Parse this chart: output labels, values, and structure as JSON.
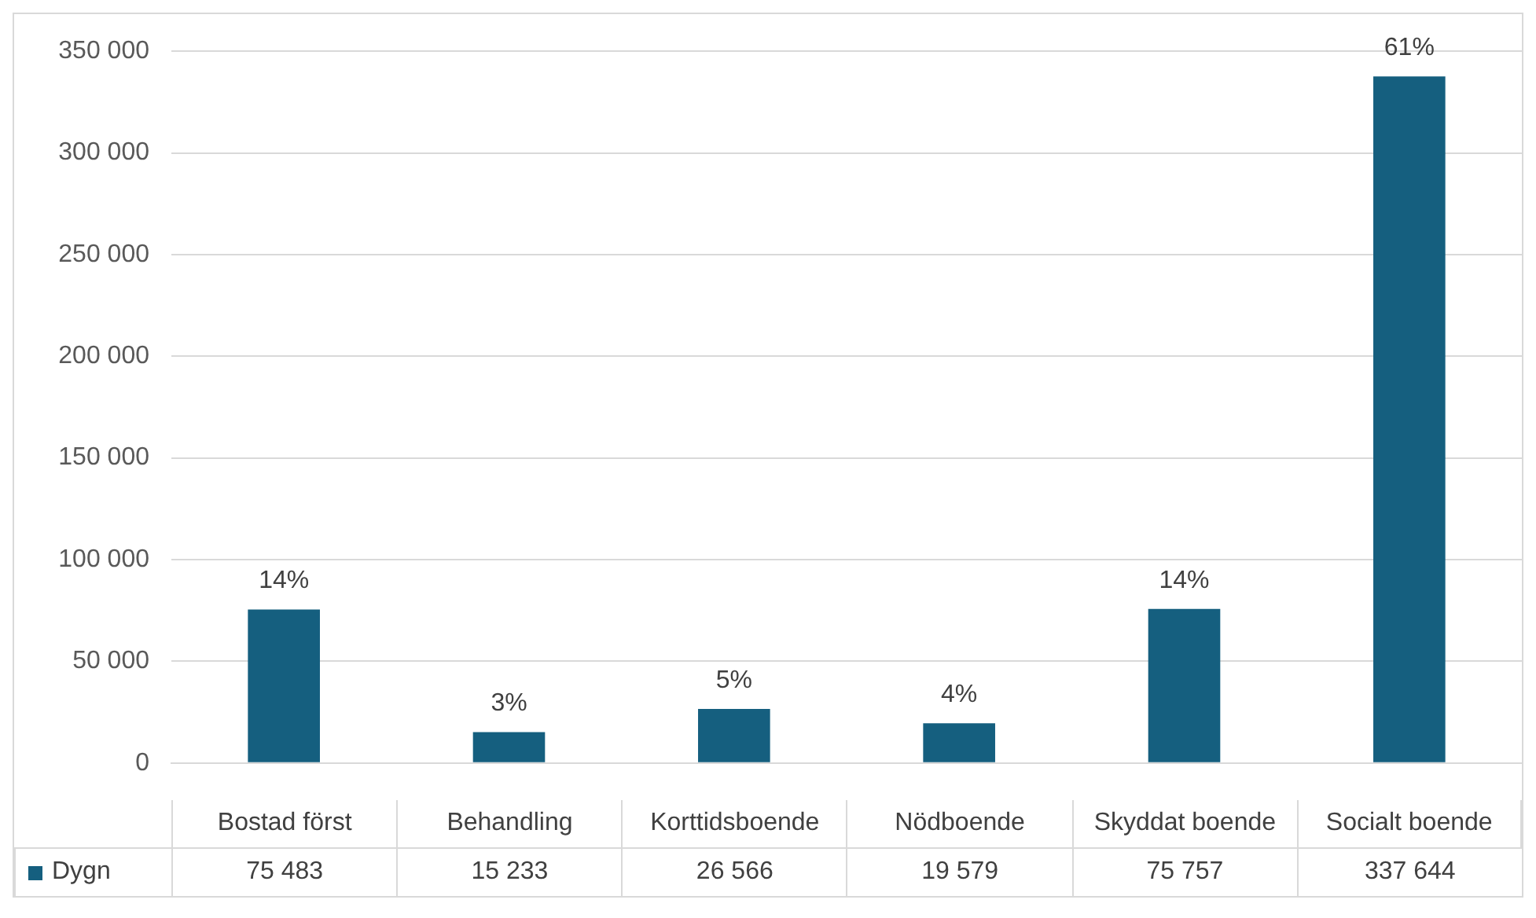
{
  "chart_data": {
    "type": "bar",
    "categories": [
      "Bostad först",
      "Behandling",
      "Korttidsboende",
      "Nödboende",
      "Skyddat boende",
      "Socialt boende"
    ],
    "series": [
      {
        "name": "Dygn",
        "color": "#155f7f",
        "values": [
          75483,
          15233,
          26566,
          19579,
          75757,
          337644
        ],
        "value_labels": [
          "75 483",
          "15 233",
          "26 566",
          "19 579",
          "75 757",
          "337 644"
        ]
      }
    ],
    "annotations": [
      {
        "text": "14%",
        "x": "Bostad först",
        "y": 75483
      },
      {
        "text": "3%",
        "x": "Behandling",
        "y": 15233
      },
      {
        "text": "5%",
        "x": "Korttidsboende",
        "y": 26566
      },
      {
        "text": "4%",
        "x": "Nödboende",
        "y": 19579
      },
      {
        "text": "14%",
        "x": "Skyddat boende",
        "y": 75757
      },
      {
        "text": "61%",
        "x": "Socialt boende",
        "y": 337644
      }
    ],
    "ylim": [
      0,
      350000
    ],
    "yticks": [
      {
        "value": 0,
        "label": "0"
      },
      {
        "value": 50000,
        "label": "50 000"
      },
      {
        "value": 100000,
        "label": "100 000"
      },
      {
        "value": 150000,
        "label": "150 000"
      },
      {
        "value": 200000,
        "label": "200 000"
      },
      {
        "value": 250000,
        "label": "250 000"
      },
      {
        "value": 300000,
        "label": "300 000"
      },
      {
        "value": 350000,
        "label": "350 000"
      }
    ],
    "grid": "y",
    "legend": "bottom"
  }
}
